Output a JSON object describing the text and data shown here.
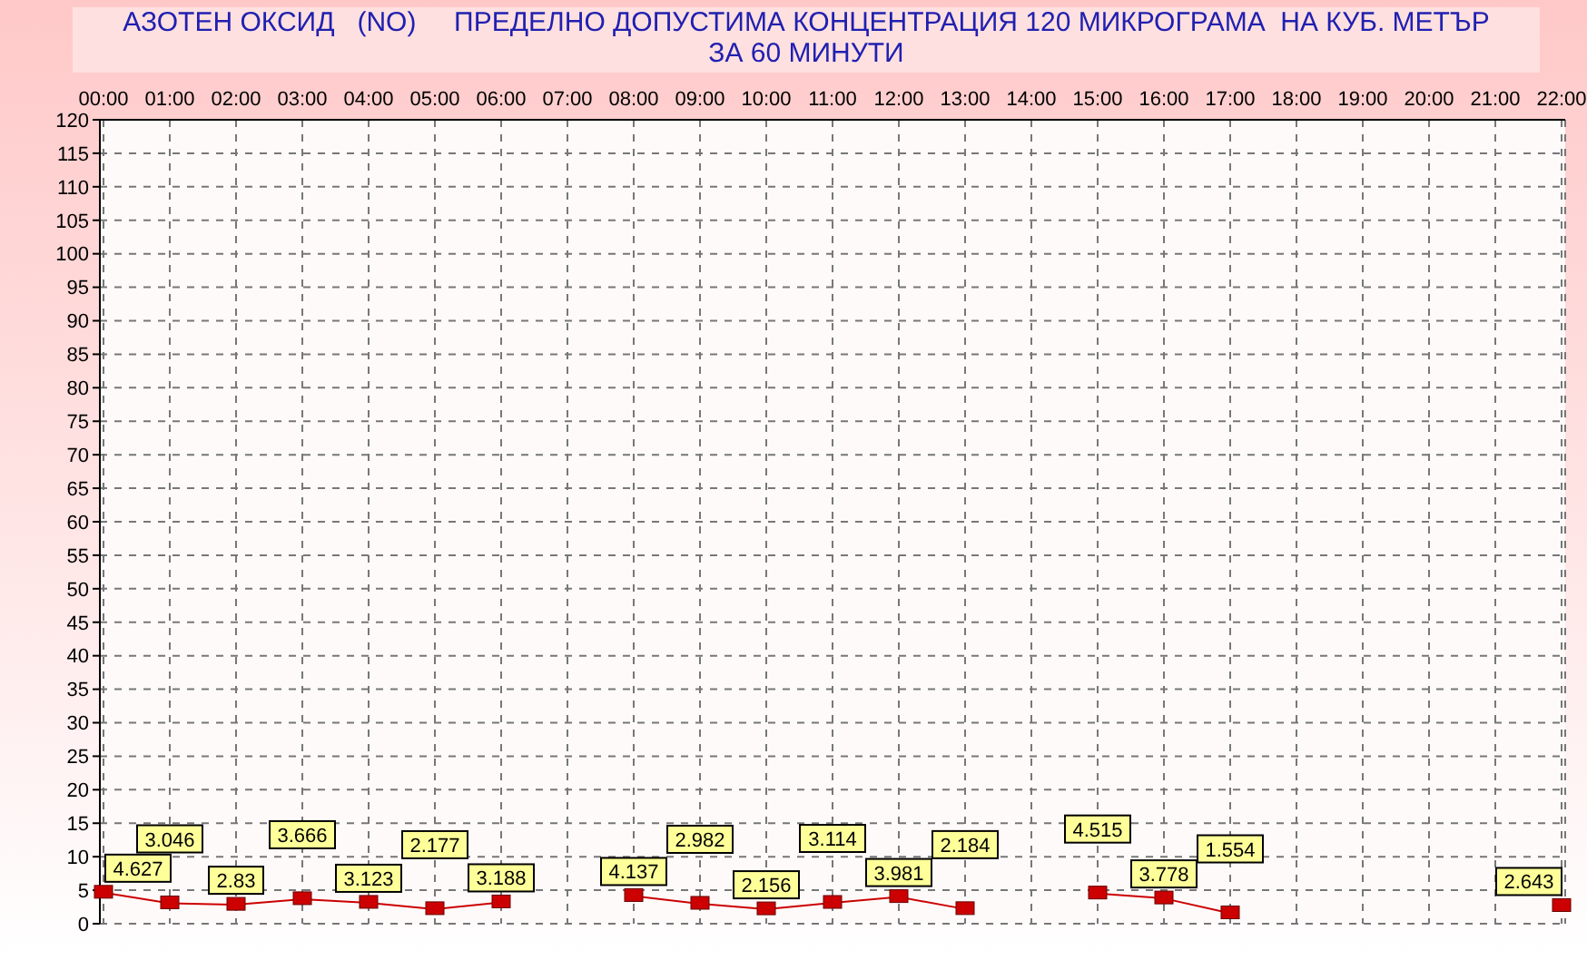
{
  "chart_data": {
    "type": "line",
    "title": "АЗОТЕН ОКСИД   (NO)     ПРЕДЕЛНО ДОПУСТИМА КОНЦЕНТРАЦИЯ 120 МИКРОГРАМА  НА КУБ. МЕТЪР",
    "subtitle": "ЗА 60 МИНУТИ",
    "categories": [
      "00:00",
      "01:00",
      "02:00",
      "03:00",
      "04:00",
      "05:00",
      "06:00",
      "07:00",
      "08:00",
      "09:00",
      "10:00",
      "11:00",
      "12:00",
      "13:00",
      "14:00",
      "15:00",
      "16:00",
      "17:00",
      "18:00",
      "19:00",
      "20:00",
      "21:00",
      "22:00"
    ],
    "series": [
      {
        "color": "#cc0000",
        "values": [
          4.627,
          3.046,
          2.83,
          3.666,
          3.123,
          2.177,
          3.188,
          null,
          4.137,
          2.982,
          2.156,
          3.114,
          3.981,
          2.184,
          null,
          4.515,
          3.778,
          1.554,
          null,
          null,
          null,
          null,
          2.643
        ]
      }
    ],
    "ylim": [
      0,
      120
    ],
    "yticks": [
      0,
      5,
      10,
      15,
      20,
      25,
      30,
      35,
      40,
      45,
      50,
      55,
      60,
      65,
      70,
      75,
      80,
      85,
      90,
      95,
      100,
      105,
      110,
      115,
      120
    ],
    "grid": true,
    "marker": "square",
    "data_labels": true,
    "legend": false
  }
}
